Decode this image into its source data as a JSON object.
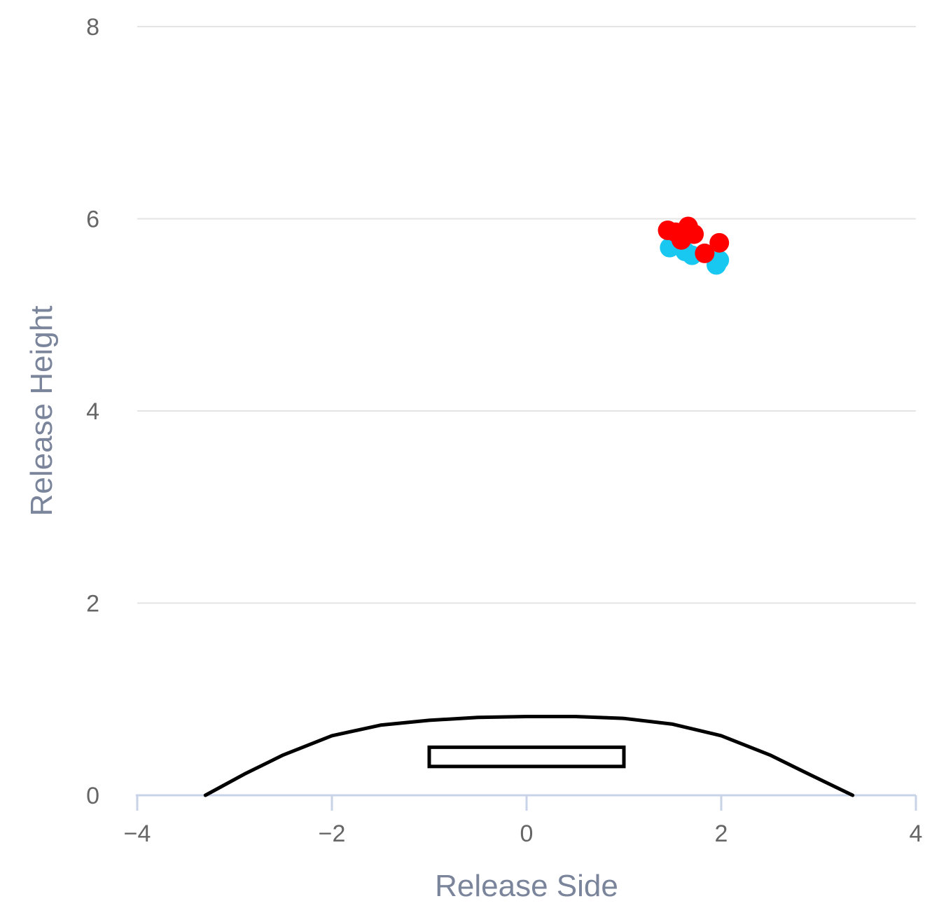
{
  "chart_data": {
    "type": "scatter",
    "title": "",
    "xlabel": "Release Side",
    "ylabel": "Release Height",
    "xlim": [
      -4,
      4
    ],
    "ylim": [
      0,
      8
    ],
    "x_ticks": [
      -4,
      -2,
      0,
      2,
      4
    ],
    "x_tick_labels": [
      "−4",
      "−2",
      "0",
      "2",
      "4"
    ],
    "y_ticks": [
      0,
      2,
      4,
      6,
      8
    ],
    "y_tick_labels": [
      "0",
      "2",
      "4",
      "6",
      "8"
    ],
    "grid": true,
    "legend": "none",
    "series": [
      {
        "color": "#18c8f0",
        "points": [
          {
            "x": 1.47,
            "y": 5.7
          },
          {
            "x": 1.55,
            "y": 5.72
          },
          {
            "x": 1.63,
            "y": 5.66
          },
          {
            "x": 1.7,
            "y": 5.62
          },
          {
            "x": 1.95,
            "y": 5.52
          },
          {
            "x": 1.98,
            "y": 5.57
          }
        ]
      },
      {
        "color": "#ff0000",
        "points": [
          {
            "x": 1.45,
            "y": 5.88
          },
          {
            "x": 1.53,
            "y": 5.86
          },
          {
            "x": 1.59,
            "y": 5.78
          },
          {
            "x": 1.66,
            "y": 5.92
          },
          {
            "x": 1.72,
            "y": 5.84
          },
          {
            "x": 1.83,
            "y": 5.64
          },
          {
            "x": 1.98,
            "y": 5.75
          }
        ]
      }
    ],
    "mound_color": "#000000",
    "rubber_color": "#000000"
  }
}
